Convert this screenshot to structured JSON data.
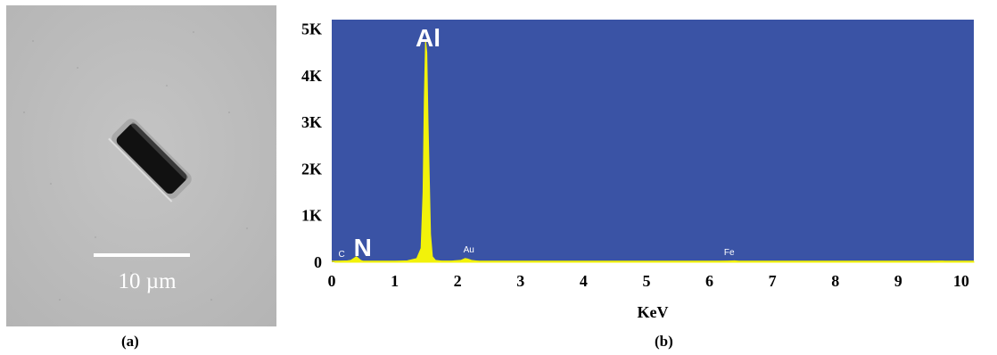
{
  "figure": {
    "label_a": "(a)",
    "label_b": "(b)"
  },
  "sem_image": {
    "scale_bar_text": "10 µm"
  },
  "chart_data": {
    "type": "line",
    "title": "",
    "xlabel": "KeV",
    "ylabel": "",
    "xlim": [
      0,
      10.2
    ],
    "ylim": [
      0,
      5200
    ],
    "x_ticks": [
      0,
      1,
      2,
      3,
      4,
      5,
      6,
      7,
      8,
      9,
      10
    ],
    "x_tick_labels": [
      "0",
      "1",
      "2",
      "3",
      "4",
      "5",
      "6",
      "7",
      "8",
      "9",
      "10"
    ],
    "y_ticks": [
      0,
      1000,
      2000,
      3000,
      4000,
      5000
    ],
    "y_tick_labels": [
      "0",
      "1K",
      "2K",
      "3K",
      "4K",
      "5K"
    ],
    "background_color": "#3a53a5",
    "spectrum_color": "#f2f20a",
    "series": [
      {
        "x": [
          0.05,
          0.25,
          0.3,
          0.36,
          0.39,
          0.42,
          0.46,
          0.5,
          0.7,
          1.0,
          1.2,
          1.35,
          1.42,
          1.45,
          1.47,
          1.49,
          1.51,
          1.53,
          1.55,
          1.57,
          1.6,
          1.65,
          1.75,
          1.9,
          2.05,
          2.12,
          2.16,
          2.22,
          2.35,
          3.0,
          4.0,
          5.0,
          6.0,
          6.3,
          6.4,
          6.5,
          7.0,
          8.0,
          9.0,
          9.7,
          9.8,
          10.2
        ],
        "y": [
          20,
          30,
          40,
          90,
          120,
          90,
          40,
          20,
          20,
          20,
          30,
          80,
          300,
          1500,
          3500,
          4750,
          4500,
          3000,
          1800,
          600,
          120,
          40,
          25,
          25,
          40,
          80,
          70,
          40,
          20,
          15,
          15,
          15,
          15,
          25,
          30,
          15,
          12,
          10,
          10,
          25,
          12,
          10
        ]
      }
    ],
    "annotations": [
      {
        "text": "Al",
        "x": 1.53,
        "y": 4750
      },
      {
        "text": "N",
        "x": 0.52,
        "y": 120
      },
      {
        "text": "C",
        "x": 0.27,
        "y": 100
      },
      {
        "text": "Au",
        "x": 2.15,
        "y": 150
      },
      {
        "text": "Fe",
        "x": 6.3,
        "y": 110
      }
    ]
  }
}
